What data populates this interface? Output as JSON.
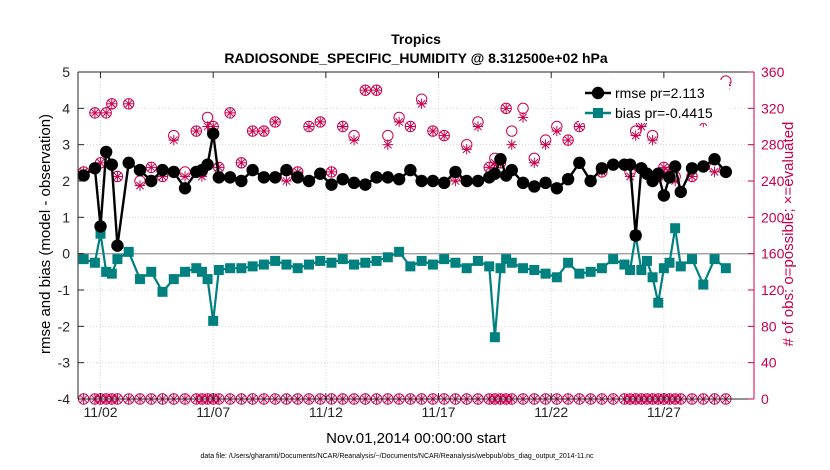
{
  "chart_data": {
    "type": "line",
    "title": "Tropics",
    "subtitle": "RADIOSONDE_SPECIFIC_HUMIDITY @ 8.312500e+02 hPa",
    "xlabel": "Nov.01,2014 00:00:00 start",
    "ylabel": "rmse and bias (model - observation)",
    "y2label": "# of obs: o=possible; ×=evaluated",
    "footnote": "data file: /Users/gharamti/Documents/NCAR/Reanalysis/~/Documents/NCAR/Reanalysis/webpub/obs_diag_output_2014-11.nc",
    "xlim": [
      1,
      31
    ],
    "ylim": [
      -4,
      5
    ],
    "y2lim": [
      0,
      360
    ],
    "x_ticks": [
      2,
      7,
      12,
      17,
      22,
      27
    ],
    "x_tick_labels": [
      "11/02",
      "11/07",
      "11/12",
      "11/17",
      "11/22",
      "11/27"
    ],
    "y_ticks": [
      "-4",
      "-3",
      "-2",
      "-1",
      "0",
      "1",
      "2",
      "3",
      "4",
      "5"
    ],
    "y2_ticks": [
      "0",
      "40",
      "80",
      "120",
      "160",
      "200",
      "240",
      "280",
      "320",
      "360"
    ],
    "x": [
      1.25,
      1.75,
      2.0,
      2.25,
      2.5,
      2.75,
      3.25,
      3.75,
      4.25,
      4.75,
      5.25,
      5.75,
      6.25,
      6.5,
      6.75,
      7.0,
      7.25,
      7.75,
      8.25,
      8.75,
      9.25,
      9.75,
      10.25,
      10.75,
      11.25,
      11.75,
      12.25,
      12.75,
      13.25,
      13.75,
      14.25,
      14.75,
      15.25,
      15.75,
      16.25,
      16.75,
      17.25,
      17.75,
      18.25,
      18.75,
      19.25,
      19.5,
      19.75,
      20.0,
      20.25,
      20.75,
      21.25,
      21.75,
      22.25,
      22.75,
      23.25,
      23.75,
      24.25,
      24.75,
      25.25,
      25.5,
      25.75,
      26.0,
      26.25,
      26.5,
      26.75,
      27.0,
      27.25,
      27.5,
      27.75,
      28.25,
      28.75,
      29.25,
      29.75
    ],
    "series": [
      {
        "name": "rmse pr=2.113",
        "axis": "left",
        "color": "#000000",
        "marker": "circle",
        "values": [
          2.15,
          2.35,
          0.75,
          2.8,
          2.45,
          0.22,
          2.5,
          2.3,
          2.0,
          2.3,
          2.25,
          1.8,
          2.25,
          2.3,
          2.45,
          3.3,
          2.1,
          2.1,
          2.0,
          2.3,
          2.1,
          2.1,
          2.3,
          2.1,
          2.0,
          2.2,
          1.9,
          2.05,
          1.95,
          1.9,
          2.1,
          2.1,
          2.05,
          2.3,
          2.0,
          2.0,
          1.95,
          2.25,
          2.0,
          2.0,
          2.1,
          2.2,
          2.6,
          2.15,
          2.3,
          1.95,
          1.85,
          1.95,
          1.8,
          2.05,
          2.5,
          2.0,
          2.35,
          2.45,
          2.45,
          2.45,
          0.5,
          2.35,
          2.2,
          2.0,
          2.2,
          1.6,
          2.1,
          2.4,
          1.7,
          2.35,
          2.4,
          2.6,
          2.25
        ]
      },
      {
        "name": "bias pr=-0.4415",
        "axis": "left",
        "color": "#00807f",
        "marker": "square",
        "values": [
          -0.15,
          -0.25,
          0.55,
          -0.5,
          -0.55,
          -0.15,
          0.05,
          -0.7,
          -0.5,
          -1.05,
          -0.7,
          -0.5,
          -0.4,
          -0.5,
          -0.7,
          -1.85,
          -0.45,
          -0.4,
          -0.4,
          -0.35,
          -0.3,
          -0.2,
          -0.3,
          -0.4,
          -0.3,
          -0.2,
          -0.25,
          -0.15,
          -0.3,
          -0.25,
          -0.2,
          -0.1,
          0.05,
          -0.35,
          -0.2,
          -0.3,
          -0.15,
          -0.25,
          -0.4,
          -0.2,
          -0.35,
          -2.3,
          -0.4,
          -0.15,
          -0.25,
          -0.4,
          -0.45,
          -0.55,
          -0.65,
          -0.25,
          -0.55,
          -0.5,
          -0.4,
          -0.15,
          -0.3,
          -0.45,
          0.5,
          -0.45,
          -0.2,
          -0.65,
          -1.35,
          -0.4,
          -0.25,
          0.7,
          -0.35,
          -0.15,
          -0.85,
          -0.15,
          -0.4
        ]
      },
      {
        "name": "obs possible",
        "axis": "right",
        "color": "#c8004f",
        "marker": "circle-open",
        "values": [
          250,
          315,
          260,
          315,
          325,
          245,
          325,
          240,
          255,
          245,
          290,
          250,
          295,
          250,
          310,
          300,
          255,
          315,
          260,
          295,
          295,
          305,
          245,
          250,
          300,
          305,
          250,
          300,
          290,
          340,
          340,
          290,
          310,
          300,
          330,
          295,
          290,
          245,
          280,
          305,
          255,
          265,
          260,
          320,
          295,
          320,
          265,
          285,
          300,
          285,
          300,
          325,
          250,
          345,
          340,
          250,
          295,
          305,
          325,
          290,
          245,
          255,
          250,
          245,
          340,
          245,
          310,
          255,
          350
        ]
      },
      {
        "name": "obs evaluated",
        "axis": "right",
        "color": "#c8004f",
        "marker": "asterisk",
        "values": [
          250,
          315,
          260,
          315,
          325,
          245,
          325,
          235,
          255,
          245,
          285,
          245,
          295,
          245,
          300,
          300,
          255,
          315,
          260,
          295,
          295,
          305,
          240,
          250,
          300,
          305,
          250,
          300,
          285,
          340,
          340,
          280,
          305,
          300,
          325,
          295,
          290,
          240,
          275,
          300,
          255,
          260,
          260,
          320,
          280,
          310,
          260,
          280,
          295,
          285,
          300,
          325,
          250,
          335,
          340,
          245,
          290,
          300,
          325,
          285,
          245,
          255,
          250,
          240,
          335,
          245,
          305,
          250,
          345
        ]
      }
    ],
    "bottom_counts": {
      "possible": 0,
      "evaluated": 0
    },
    "legend": [
      {
        "label": "rmse pr=2.113",
        "series": 0
      },
      {
        "label": "bias pr=-0.4415",
        "series": 1
      }
    ],
    "legend_position": "top-right"
  }
}
